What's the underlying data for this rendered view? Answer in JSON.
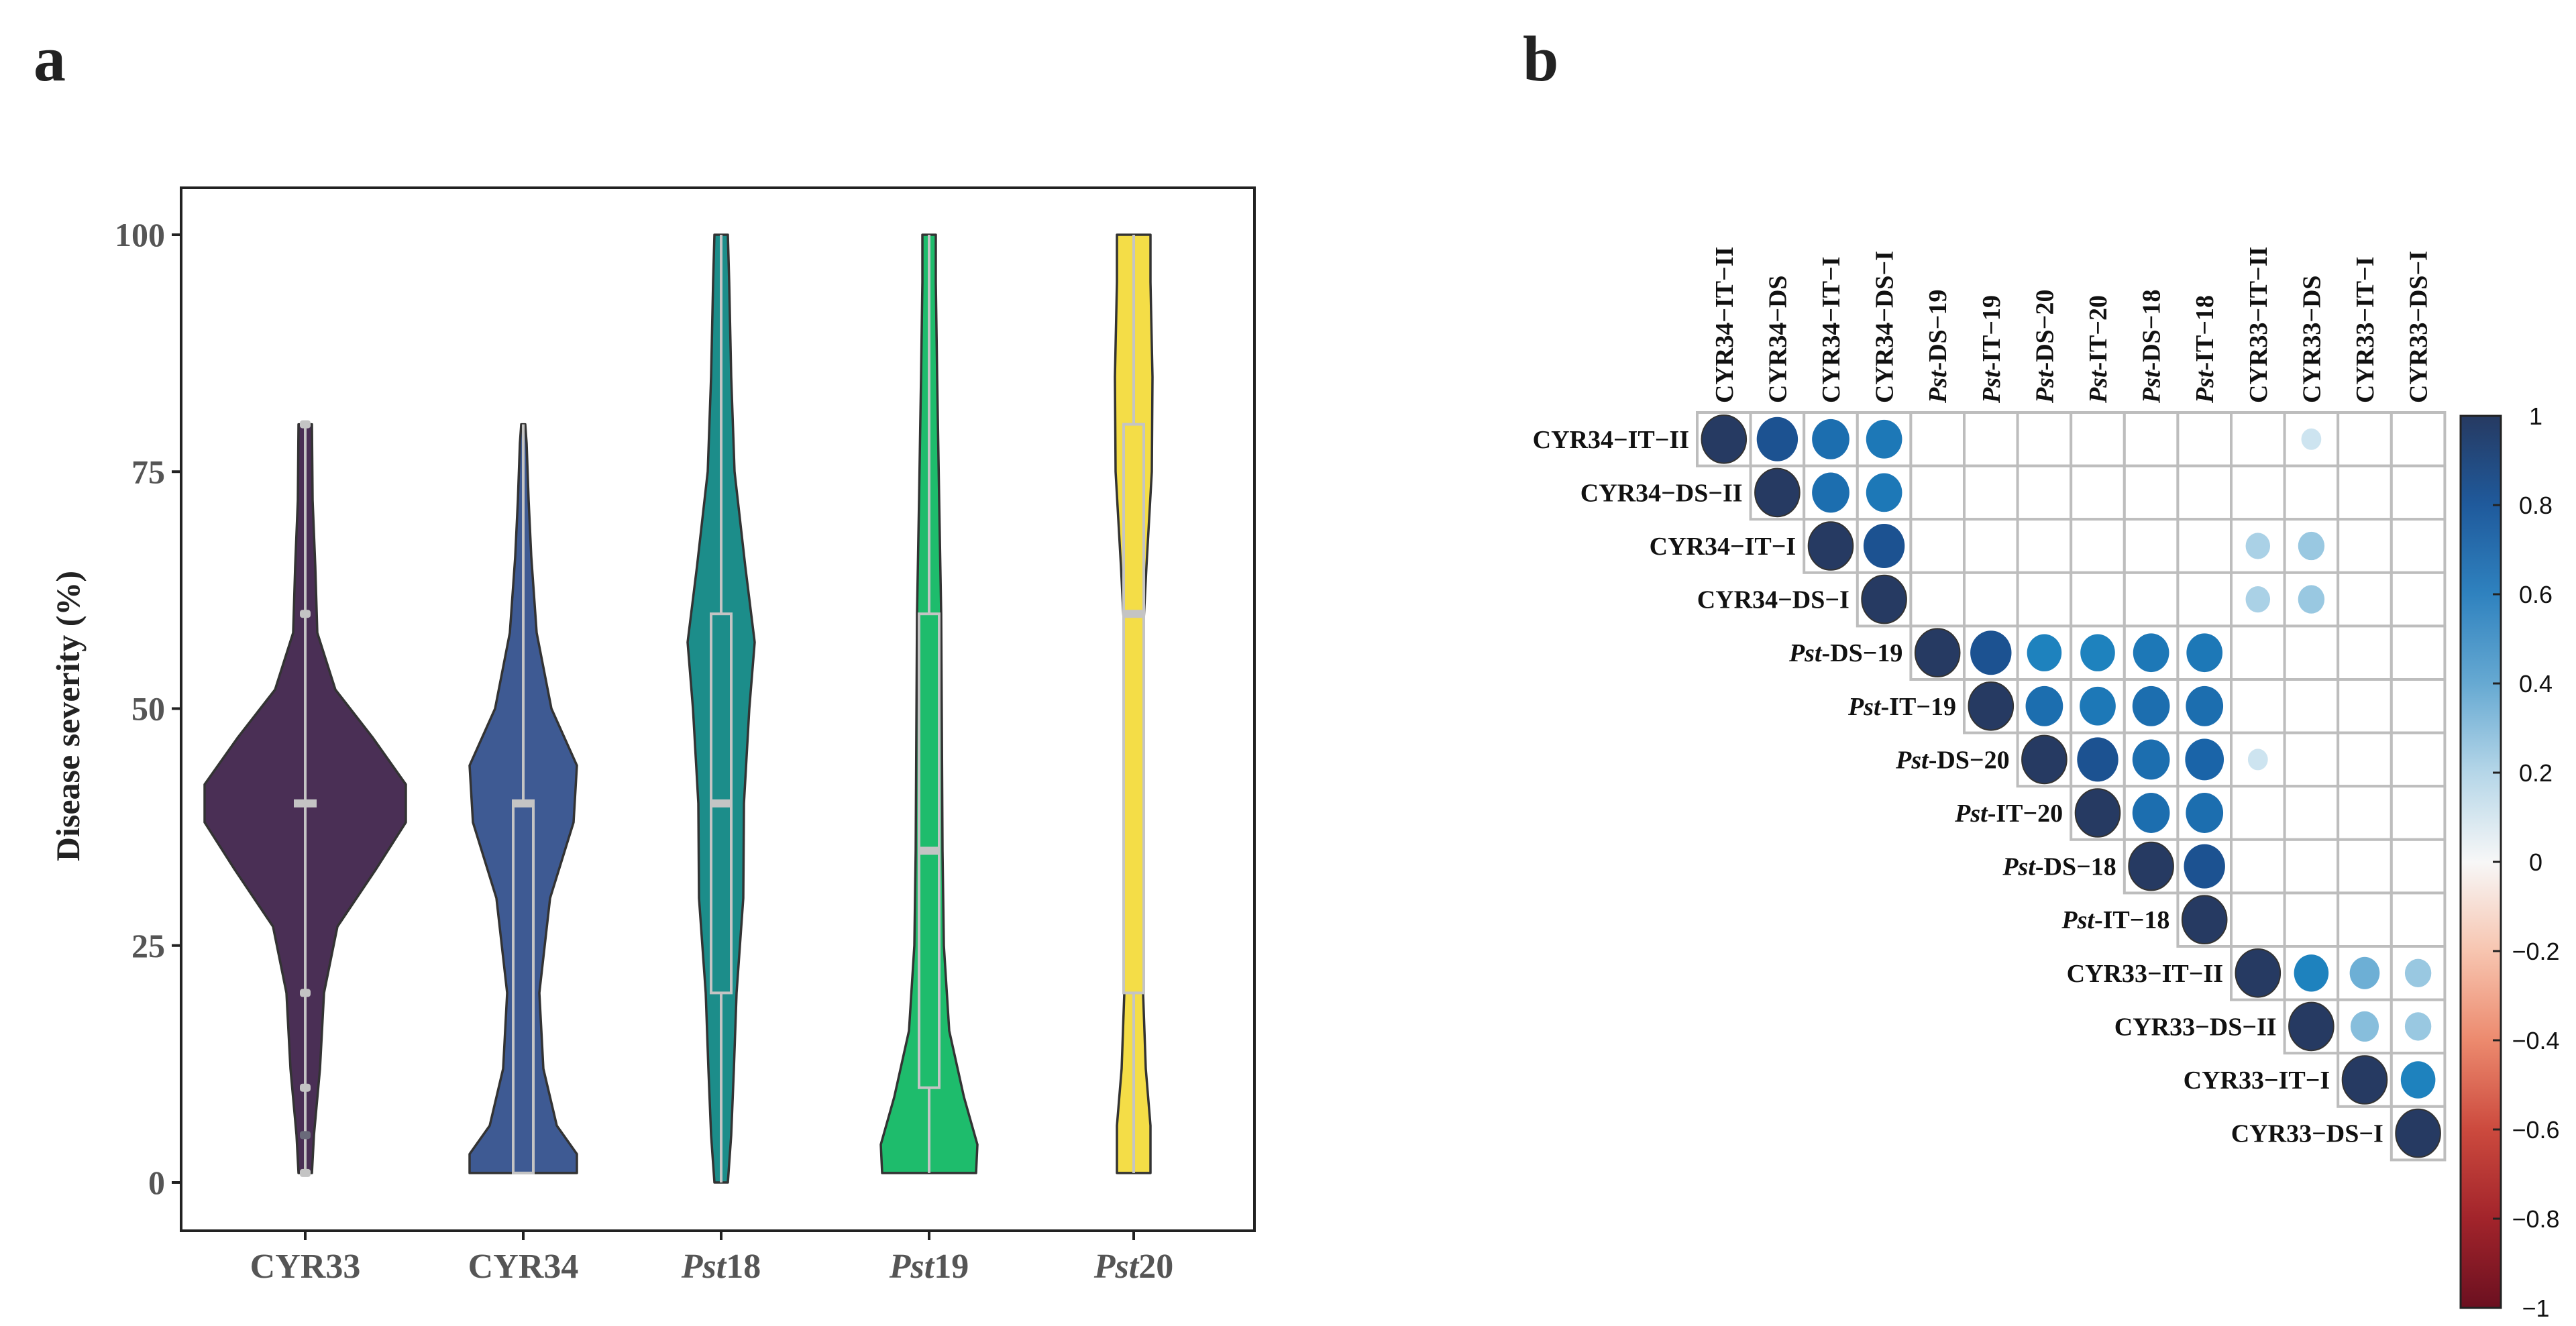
{
  "panels": {
    "a": "a",
    "b": "b"
  },
  "chart_data": [
    {
      "type": "violin",
      "ylabel": "Disease severity (%)",
      "ylim": [
        0,
        100
      ],
      "yticks": [
        "0",
        "25",
        "50",
        "75",
        "100"
      ],
      "groups": [
        {
          "label": "CYR33",
          "italic_prefix": "",
          "suffix": "CYR33",
          "color": "#4a2f55",
          "min": 1,
          "max": 80,
          "q1": 40,
          "median": 40,
          "q3": 40,
          "outliers": [
            80,
            60,
            20,
            10,
            5,
            1
          ]
        },
        {
          "label": "CYR34",
          "italic_prefix": "",
          "suffix": "CYR34",
          "color": "#3e5a93",
          "min": 1,
          "max": 80,
          "q1": 1,
          "median": 40,
          "q3": 40,
          "outliers": []
        },
        {
          "label": "Pst18",
          "italic_prefix": "Pst",
          "suffix": "18",
          "color": "#1c8d8a",
          "min": 0,
          "max": 100,
          "q1": 20,
          "median": 40,
          "q3": 60,
          "outliers": []
        },
        {
          "label": "Pst19",
          "italic_prefix": "Pst",
          "suffix": "19",
          "color": "#1ebc6c",
          "min": 1,
          "max": 100,
          "q1": 10,
          "median": 35,
          "q3": 60,
          "outliers": []
        },
        {
          "label": "Pst20",
          "italic_prefix": "Pst",
          "suffix": "20",
          "color": "#f4dd47",
          "min": 1,
          "max": 100,
          "q1": 20,
          "median": 60,
          "q3": 80,
          "outliers": []
        }
      ]
    },
    {
      "type": "heatmap",
      "variables": [
        {
          "italic": "",
          "rest": "CYR34−IT−II"
        },
        {
          "italic": "",
          "rest": "CYR34−DS−II"
        },
        {
          "italic": "",
          "rest": "CYR34−IT−I"
        },
        {
          "italic": "",
          "rest": "CYR34−DS−I"
        },
        {
          "italic": "Pst",
          "rest": "-DS−19"
        },
        {
          "italic": "Pst",
          "rest": "-IT−19"
        },
        {
          "italic": "Pst",
          "rest": "-DS−20"
        },
        {
          "italic": "Pst",
          "rest": "-IT−20"
        },
        {
          "italic": "Pst",
          "rest": "-DS−18"
        },
        {
          "italic": "Pst",
          "rest": "-IT−18"
        },
        {
          "italic": "",
          "rest": "CYR33−IT−II"
        },
        {
          "italic": "",
          "rest": "CYR33−DS−II"
        },
        {
          "italic": "",
          "rest": "CYR33−IT−I"
        },
        {
          "italic": "",
          "rest": "CYR33−DS−I"
        }
      ],
      "column_labels": [
        {
          "italic": "",
          "rest": "CYR34−IT−II"
        },
        {
          "italic": "",
          "rest": "CYR34−DS"
        },
        {
          "italic": "",
          "rest": "CYR34−IT−I"
        },
        {
          "italic": "",
          "rest": "CYR34−DS−I"
        },
        {
          "italic": "Pst",
          "rest": "-DS−19"
        },
        {
          "italic": "Pst",
          "rest": "-IT−19"
        },
        {
          "italic": "Pst",
          "rest": "-DS−20"
        },
        {
          "italic": "Pst",
          "rest": "-IT−20"
        },
        {
          "italic": "Pst",
          "rest": "-DS−18"
        },
        {
          "italic": "Pst",
          "rest": "-IT−18"
        },
        {
          "italic": "",
          "rest": "CYR33−IT−II"
        },
        {
          "italic": "",
          "rest": "CYR33−DS"
        },
        {
          "italic": "",
          "rest": "CYR33−IT−I"
        },
        {
          "italic": "",
          "rest": "CYR33−DS−I"
        }
      ],
      "correlations": [
        [
          0,
          0,
          1.0
        ],
        [
          0,
          1,
          0.85
        ],
        [
          0,
          2,
          0.7
        ],
        [
          0,
          3,
          0.65
        ],
        [
          0,
          11,
          0.2
        ],
        [
          1,
          1,
          1.0
        ],
        [
          1,
          2,
          0.7
        ],
        [
          1,
          3,
          0.65
        ],
        [
          2,
          2,
          1.0
        ],
        [
          2,
          3,
          0.85
        ],
        [
          2,
          10,
          0.3
        ],
        [
          2,
          11,
          0.35
        ],
        [
          3,
          3,
          1.0
        ],
        [
          3,
          10,
          0.3
        ],
        [
          3,
          11,
          0.35
        ],
        [
          4,
          4,
          1.0
        ],
        [
          4,
          5,
          0.85
        ],
        [
          4,
          6,
          0.6
        ],
        [
          4,
          7,
          0.6
        ],
        [
          4,
          8,
          0.65
        ],
        [
          4,
          9,
          0.65
        ],
        [
          5,
          5,
          1.0
        ],
        [
          5,
          6,
          0.7
        ],
        [
          5,
          7,
          0.65
        ],
        [
          5,
          8,
          0.7
        ],
        [
          5,
          9,
          0.7
        ],
        [
          6,
          6,
          1.0
        ],
        [
          6,
          7,
          0.85
        ],
        [
          6,
          8,
          0.7
        ],
        [
          6,
          9,
          0.75
        ],
        [
          6,
          10,
          0.2
        ],
        [
          7,
          7,
          1.0
        ],
        [
          7,
          8,
          0.7
        ],
        [
          7,
          9,
          0.7
        ],
        [
          8,
          8,
          1.0
        ],
        [
          8,
          9,
          0.85
        ],
        [
          9,
          9,
          1.0
        ],
        [
          10,
          10,
          1.0
        ],
        [
          10,
          11,
          0.6
        ],
        [
          10,
          12,
          0.45
        ],
        [
          10,
          13,
          0.35
        ],
        [
          11,
          11,
          1.0
        ],
        [
          11,
          12,
          0.4
        ],
        [
          11,
          13,
          0.35
        ],
        [
          12,
          12,
          1.0
        ],
        [
          12,
          13,
          0.6
        ],
        [
          13,
          13,
          1.0
        ]
      ],
      "colorbar": {
        "range": [
          -1,
          1
        ],
        "ticks": [
          "1",
          "0.8",
          "0.6",
          "0.4",
          "0.2",
          "0",
          "−0.2",
          "−0.4",
          "−0.6",
          "−0.8",
          "−1"
        ]
      }
    }
  ]
}
